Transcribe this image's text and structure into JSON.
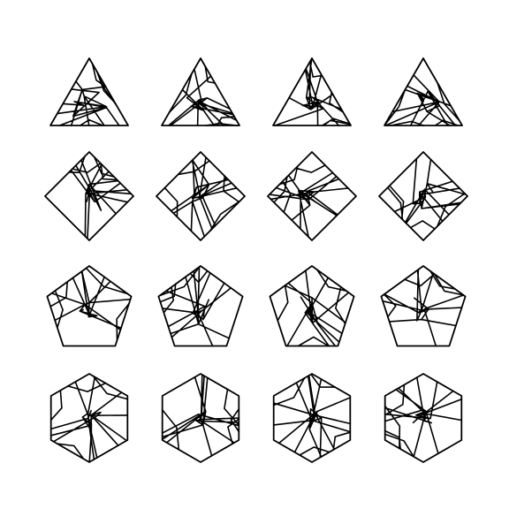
{
  "background": "#ffffff",
  "stroke_color": "#000000",
  "rows": [
    {
      "shape": "triangle",
      "sides": 3,
      "variants": [
        1,
        2,
        3,
        4
      ]
    },
    {
      "shape": "diamond",
      "sides": 4,
      "variants": [
        5,
        6,
        7,
        8
      ]
    },
    {
      "shape": "pentagon",
      "sides": 5,
      "variants": [
        9,
        10,
        11,
        12
      ]
    },
    {
      "shape": "hexagon",
      "sides": 6,
      "variants": [
        13,
        14,
        15,
        16
      ]
    }
  ]
}
